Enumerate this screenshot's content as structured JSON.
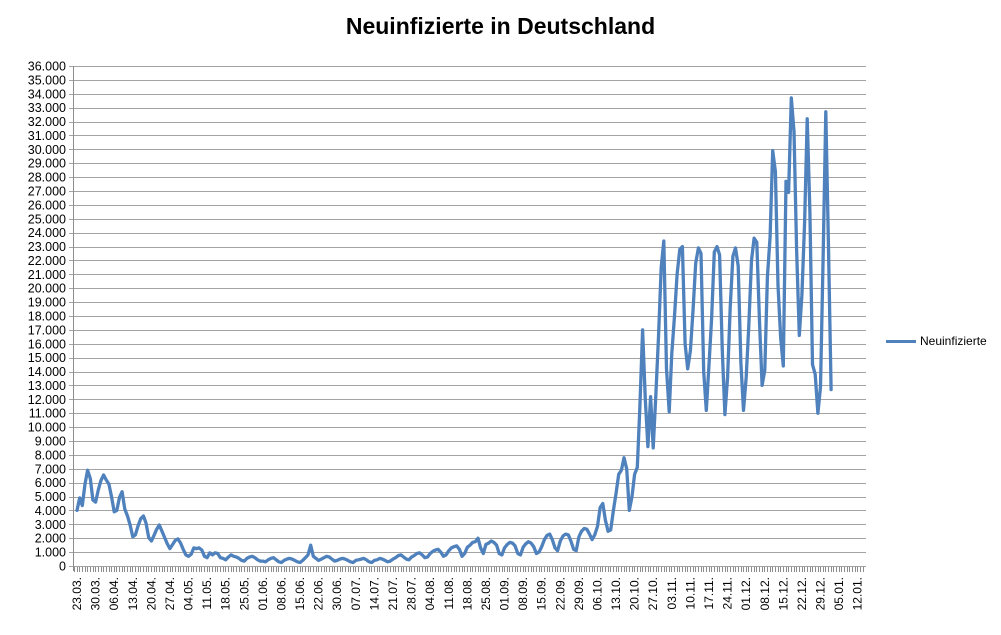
{
  "page": {
    "title": "Neuinfizierte in Deutschland"
  },
  "legend": {
    "label": "Neuinfizierte"
  },
  "colors": {
    "line": "#4f81bd",
    "grid": "#a3a3a3",
    "axis": "#8c8c8c",
    "text": "#000000",
    "background": "#ffffff"
  },
  "chart_data": {
    "type": "line",
    "title": "Neuinfizierte in Deutschland",
    "series_name": "Neuinfizierte",
    "legend_position": "right",
    "grid": true,
    "ylim": [
      0,
      36000
    ],
    "y_step": 1000,
    "y_tick_labels": [
      "0",
      "1.000",
      "2.000",
      "3.000",
      "4.000",
      "5.000",
      "6.000",
      "7.000",
      "8.000",
      "9.000",
      "10.000",
      "11.000",
      "12.000",
      "13.000",
      "14.000",
      "15.000",
      "16.000",
      "17.000",
      "18.000",
      "19.000",
      "20.000",
      "21.000",
      "22.000",
      "23.000",
      "24.000",
      "25.000",
      "26.000",
      "27.000",
      "28.000",
      "29.000",
      "30.000",
      "31.000",
      "32.000",
      "33.000",
      "34.000",
      "35.000",
      "36.000"
    ],
    "x_tick_labels": [
      "23.03.",
      "30.03.",
      "06.04.",
      "13.04.",
      "20.04.",
      "27.04.",
      "04.05.",
      "11.05.",
      "18.05.",
      "25.05.",
      "01.06.",
      "08.06.",
      "15.06.",
      "22.06.",
      "30.06.",
      "07.07.",
      "14.07.",
      "21.07.",
      "28.07.",
      "04.08.",
      "11.08.",
      "18.08.",
      "25.08.",
      "01.09.",
      "08.09.",
      "15.09.",
      "22.09.",
      "29.09.",
      "06.10.",
      "13.10.",
      "20.10.",
      "27.10.",
      "03.11.",
      "10.11.",
      "17.11.",
      "24.11.",
      "01.12.",
      "08.12.",
      "15.12.",
      "22.12.",
      "29.12.",
      "05.01.",
      "12.01."
    ],
    "x_tick_every": 7,
    "n_categories": 297,
    "values": [
      4000,
      4900,
      4350,
      5900,
      6900,
      6300,
      4750,
      4600,
      5450,
      6150,
      6550,
      6200,
      5900,
      5000,
      3900,
      4000,
      4950,
      5350,
      4100,
      3600,
      2950,
      2100,
      2250,
      2900,
      3400,
      3600,
      3100,
      2050,
      1800,
      2200,
      2650,
      2950,
      2500,
      2050,
      1600,
      1250,
      1550,
      1850,
      1950,
      1650,
      1200,
      800,
      700,
      850,
      1300,
      1250,
      1300,
      1150,
      700,
      600,
      950,
      800,
      950,
      900,
      600,
      550,
      450,
      650,
      800,
      700,
      650,
      550,
      400,
      350,
      550,
      650,
      700,
      600,
      450,
      350,
      350,
      300,
      450,
      550,
      600,
      450,
      300,
      250,
      400,
      500,
      550,
      500,
      400,
      300,
      250,
      400,
      600,
      800,
      1500,
      700,
      550,
      400,
      500,
      600,
      700,
      650,
      500,
      350,
      400,
      500,
      550,
      500,
      400,
      300,
      250,
      400,
      450,
      500,
      550,
      450,
      300,
      250,
      400,
      450,
      550,
      500,
      400,
      300,
      350,
      500,
      600,
      750,
      800,
      650,
      500,
      450,
      650,
      750,
      900,
      950,
      800,
      600,
      650,
      900,
      1050,
      1150,
      1200,
      1000,
      700,
      800,
      1100,
      1300,
      1400,
      1450,
      1200,
      700,
      900,
      1350,
      1500,
      1700,
      1750,
      2000,
      1300,
      900,
      1550,
      1650,
      1800,
      1700,
      1500,
      900,
      800,
      1300,
      1550,
      1700,
      1650,
      1450,
      900,
      800,
      1350,
      1600,
      1750,
      1650,
      1400,
      900,
      1000,
      1400,
      1900,
      2200,
      2300,
      1900,
      1300,
      1100,
      1800,
      2150,
      2300,
      2250,
      1800,
      1200,
      1100,
      2100,
      2500,
      2700,
      2650,
      2300,
      1900,
      2250,
      2850,
      4200,
      4500,
      3300,
      2500,
      2600,
      4000,
      5200,
      6600,
      6900,
      7800,
      7000,
      4000,
      5000,
      6600,
      7100,
      11500,
      17000,
      12000,
      8600,
      12200,
      8500,
      12400,
      16500,
      21500,
      23400,
      14200,
      11100,
      15300,
      18000,
      21000,
      22800,
      23000,
      16000,
      14200,
      15500,
      18500,
      21800,
      22900,
      22500,
      14000,
      11200,
      14500,
      17800,
      22600,
      23000,
      22400,
      15500,
      10900,
      13600,
      18600,
      22300,
      22900,
      21600,
      14600,
      11200,
      13600,
      17300,
      22000,
      23600,
      23300,
      17800,
      13000,
      14100,
      20800,
      23700,
      29900,
      28400,
      20200,
      16400,
      14400,
      27700,
      26900,
      33700,
      31300,
      22800,
      16600,
      19500,
      24700,
      32200,
      25500,
      14500,
      13800,
      11000,
      12900,
      22500,
      32700,
      22900,
      12700
    ]
  }
}
